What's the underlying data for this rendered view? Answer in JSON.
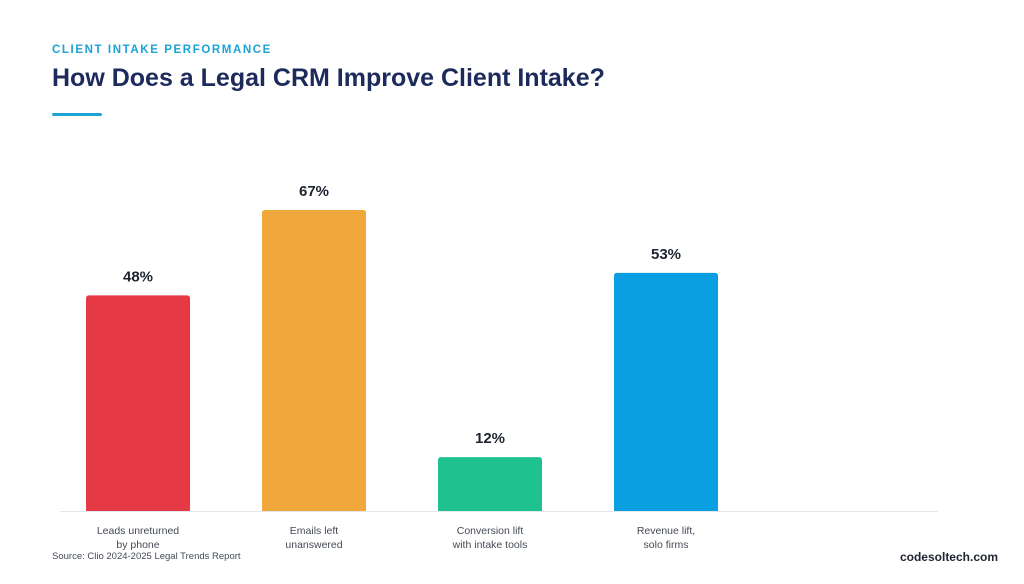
{
  "header": {
    "eyebrow": "CLIENT INTAKE PERFORMANCE",
    "title": "How Does a Legal CRM Improve Client Intake?"
  },
  "footer": {
    "source": "Source: Clio 2024-2025 Legal Trends Report",
    "brand": "codesoltech.com"
  },
  "colors": {
    "accent": "#1ba3d6",
    "title": "#1d2a5c"
  },
  "chart_data": {
    "type": "bar",
    "categories": [
      [
        "Leads unreturned",
        "by phone"
      ],
      [
        "Emails left",
        "unanswered"
      ],
      [
        "Conversion lift",
        "with intake tools"
      ],
      [
        "Revenue lift,",
        "solo firms"
      ]
    ],
    "values": [
      48,
      67,
      12,
      53
    ],
    "value_labels": [
      "48%",
      "67%",
      "12%",
      "53%"
    ],
    "colors": [
      "#e63946",
      "#f0a83c",
      "#1fc28f",
      "#0a9fe0"
    ],
    "unit": "%",
    "title": "",
    "xlabel": "",
    "ylabel": "",
    "ylim": [
      0,
      80
    ],
    "grid": false,
    "legend": "none"
  }
}
